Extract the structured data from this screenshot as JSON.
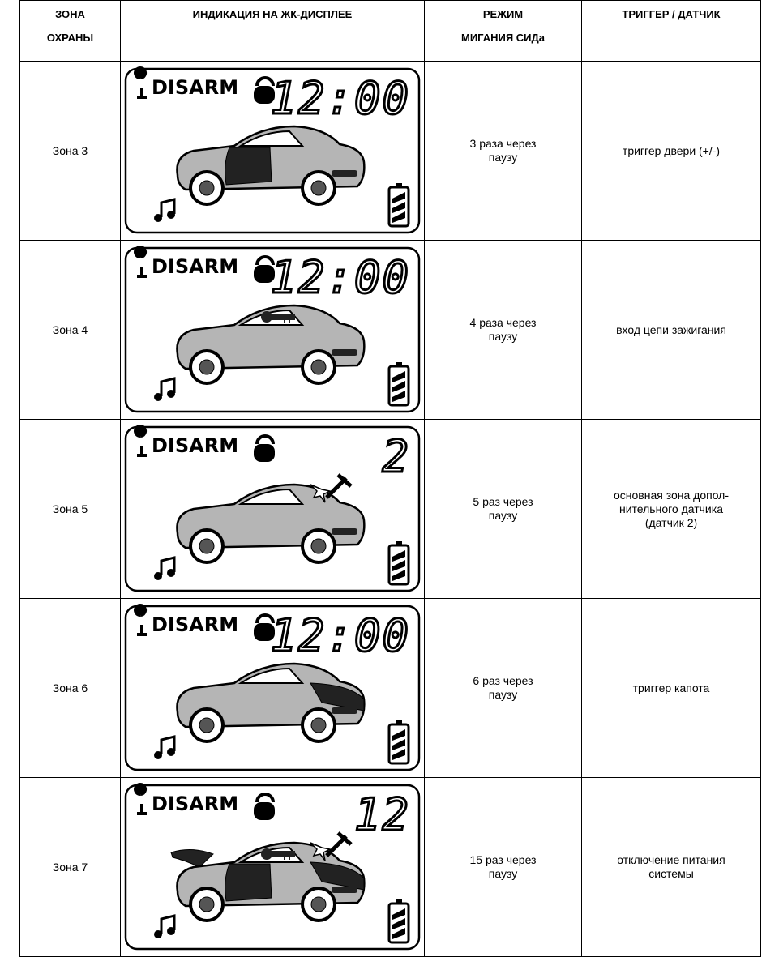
{
  "table": {
    "header": [
      "ЗОНА\nОХРАНЫ",
      "ИНДИКАЦИЯ НА ЖК-ДИСПЛЕЕ",
      "РЕЖИМ\nМИГАНИЯ СИДа",
      "ТРИГГЕР / ДАТЧИК"
    ],
    "rows": [
      {
        "zone": "Зона 3",
        "display": {
          "status": "DISARM",
          "time": "12:00"
        },
        "blink": "3 раза через\nпаузу",
        "trigger": "триггер двери (+/-)"
      },
      {
        "zone": "Зона 4",
        "display": {
          "status": "DISARM",
          "time": "12:00"
        },
        "blink": "4 раза через\nпаузу",
        "trigger": "вход цепи зажигания"
      },
      {
        "zone": "Зона 5",
        "display": {
          "status": "DISARM",
          "time": "2"
        },
        "blink": "5 раз через\nпаузу",
        "trigger": "основная зона допол-\nнительного датчика\n(датчик 2)"
      },
      {
        "zone": "Зона 6",
        "display": {
          "status": "DISARM",
          "time": "12:00"
        },
        "blink": "6 раз через\nпаузу",
        "trigger": "триггер капота"
      },
      {
        "zone": "Зона 7",
        "display": {
          "status": "DISARM",
          "time": "12"
        },
        "blink": "15 раз через\nпаузу",
        "trigger": "отключение питания\nсистемы"
      }
    ]
  }
}
